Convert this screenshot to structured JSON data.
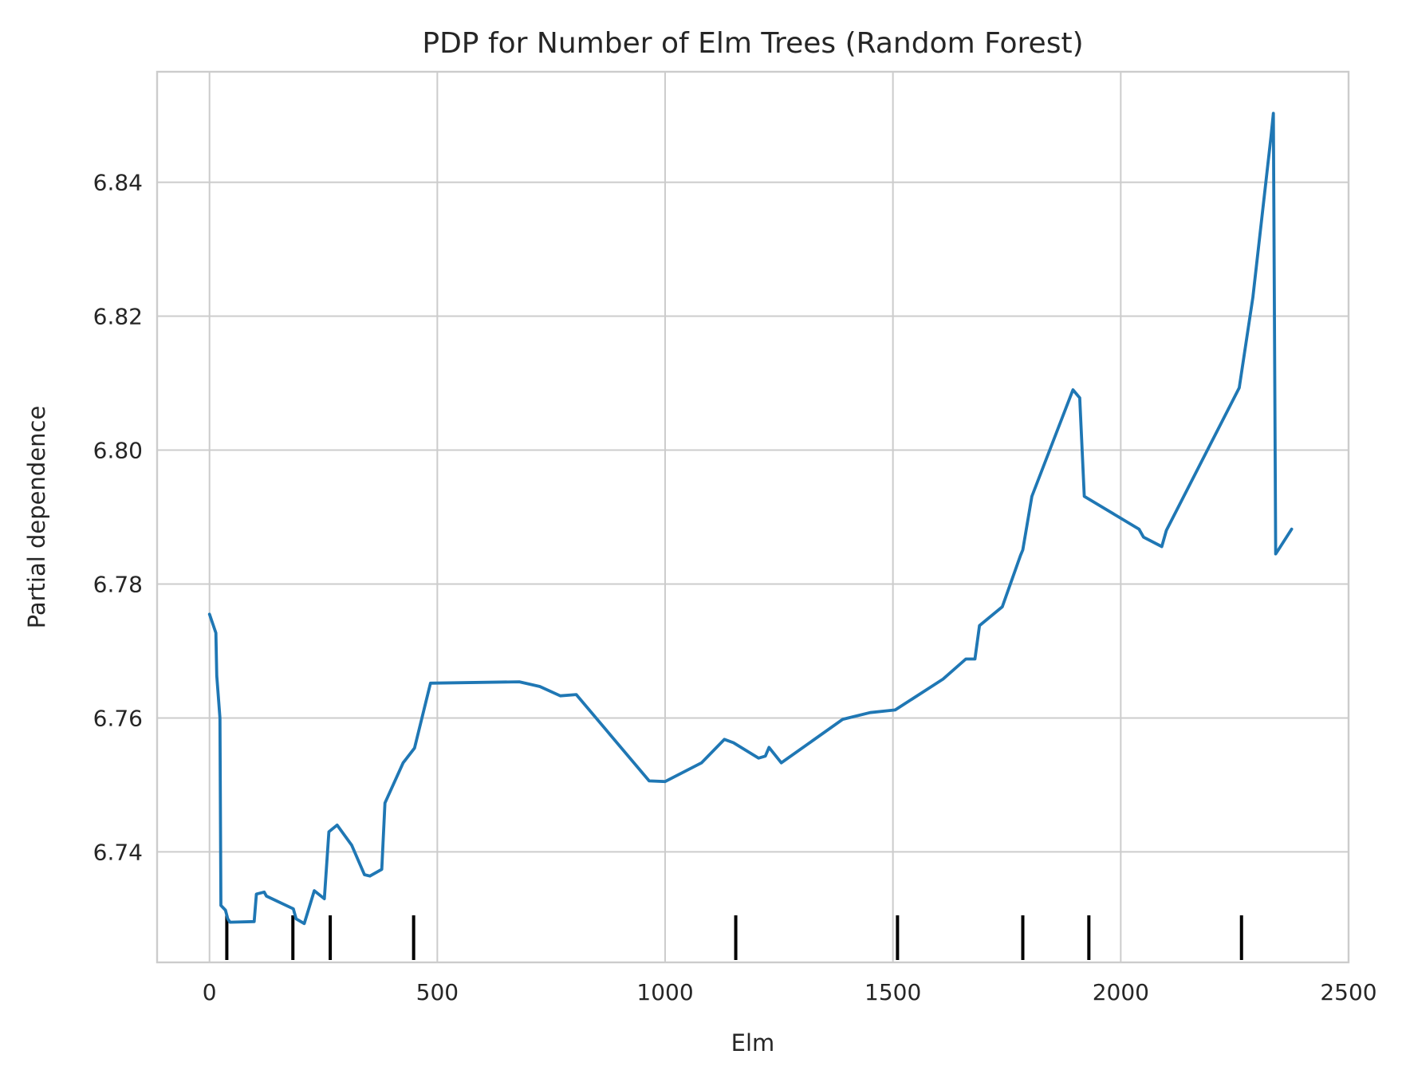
{
  "chart_data": {
    "type": "line",
    "title": "PDP for Number of Elm Trees (Random Forest)",
    "xlabel": "Elm",
    "ylabel": "Partial dependence",
    "xlim": [
      -115,
      2500
    ],
    "ylim": [
      6.7235,
      6.8565
    ],
    "xticks": [
      0,
      500,
      1000,
      1500,
      2000,
      2500
    ],
    "yticks": [
      6.74,
      6.76,
      6.78,
      6.8,
      6.82,
      6.84
    ],
    "ytick_labels": [
      "6.74",
      "6.76",
      "6.78",
      "6.80",
      "6.82",
      "6.84"
    ],
    "grid": true,
    "series": [
      {
        "color": "#1f77b4",
        "x": [
          0,
          14,
          16,
          23,
          25,
          35,
          40,
          45,
          98,
          103,
          120,
          125,
          184,
          190,
          208,
          230,
          252,
          262,
          280,
          312,
          340,
          352,
          378,
          385,
          425,
          450,
          485,
          680,
          725,
          770,
          805,
          965,
          1000,
          1080,
          1130,
          1150,
          1205,
          1220,
          1228,
          1255,
          1390,
          1450,
          1505,
          1610,
          1660,
          1680,
          1690,
          1740,
          1780,
          1785,
          1805,
          1895,
          1910,
          1920,
          2040,
          2050,
          2090,
          2100,
          2260,
          2290,
          2330,
          2335,
          2340,
          2345,
          2375
        ],
        "y": [
          6.7755,
          6.7727,
          6.7663,
          6.76,
          6.732,
          6.7313,
          6.73,
          6.7295,
          6.7296,
          6.7337,
          6.734,
          6.7334,
          6.7315,
          6.73,
          6.7293,
          6.7342,
          6.733,
          6.743,
          6.744,
          6.741,
          6.7366,
          6.7364,
          6.7374,
          6.7473,
          6.7533,
          6.7555,
          6.7652,
          6.7654,
          6.7647,
          6.7633,
          6.7635,
          6.7506,
          6.7505,
          6.7533,
          6.7568,
          6.7563,
          6.754,
          6.7543,
          6.7556,
          6.7533,
          6.7598,
          6.7608,
          6.7612,
          6.7658,
          6.7688,
          6.7688,
          6.7738,
          6.7766,
          6.7843,
          6.7851,
          6.7931,
          6.809,
          6.8078,
          6.7931,
          6.7882,
          6.787,
          6.7856,
          6.788,
          6.8093,
          6.8228,
          6.847,
          6.8503,
          6.7845,
          6.785,
          6.7882
        ]
      }
    ],
    "rug": {
      "color": "#000000",
      "x": [
        38,
        183,
        265,
        448,
        1155,
        1510,
        1785,
        1930,
        2265
      ]
    }
  }
}
